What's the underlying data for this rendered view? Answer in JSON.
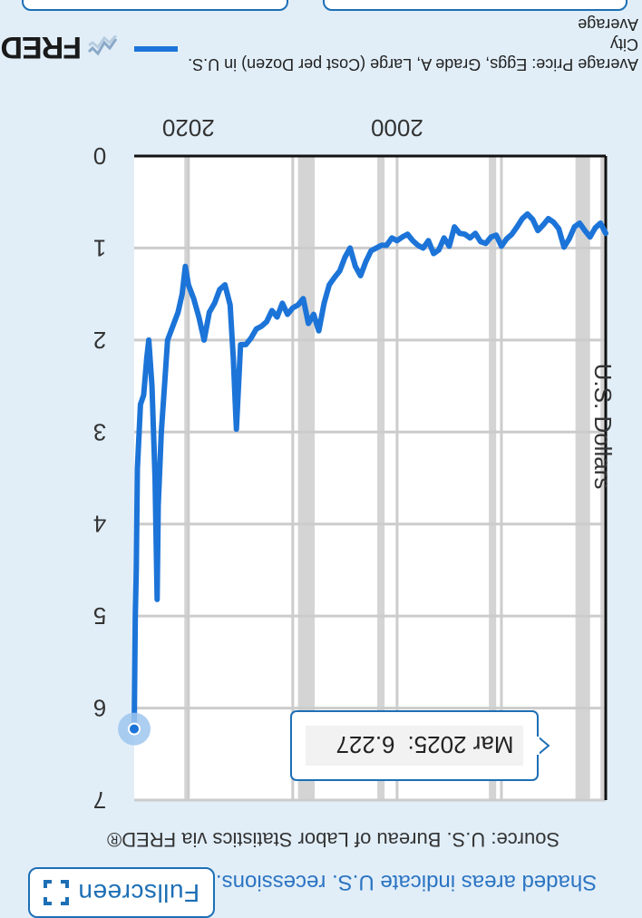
{
  "header": {
    "fullscreen_label": "Fullscreen",
    "recession_note": "Shaded areas indicate U.S. recessions.",
    "source_note": "Source: U.S. Bureau of Labor Statistics via FRED®"
  },
  "legend": {
    "series_label_line1": "Average Price: Eggs, Grade A, Large (Cost per Dozen) in U.S. City",
    "series_label_line2": "Average",
    "logo_text": "FRED"
  },
  "colors": {
    "series": "#1c74d8",
    "recession": "#d4d4d4",
    "grid": "#cccccc",
    "accent": "#1d6fb5",
    "background": "#e1eef8"
  },
  "icons": [
    "fullscreen-icon",
    "fred-logo-icon"
  ],
  "tooltip": {
    "date": "Mar 2025:",
    "value": "6.227"
  },
  "chart_data": {
    "type": "line",
    "title": "",
    "xlabel": "",
    "ylabel": "U.S. Dollars",
    "xlim": [
      1980,
      2025.2
    ],
    "ylim": [
      0,
      7
    ],
    "x_ticks": [
      2000,
      2020
    ],
    "y_ticks": [
      0,
      1,
      2,
      3,
      4,
      5,
      6,
      7
    ],
    "grid": true,
    "legend_position": "bottom",
    "recessions": [
      [
        1980.0,
        1980.5
      ],
      [
        1981.5,
        1982.9
      ],
      [
        1990.5,
        1991.2
      ],
      [
        2001.2,
        2001.9
      ],
      [
        2007.9,
        2009.5
      ],
      [
        2020.1,
        2020.4
      ]
    ],
    "series": [
      {
        "name": "Average Price: Eggs, Grade A, Large (Cost per Dozen) in U.S. City Average",
        "x": [
          1980.0,
          1980.5,
          1981.0,
          1981.5,
          1982.0,
          1982.5,
          1983.0,
          1983.5,
          1984.0,
          1984.5,
          1985.0,
          1985.5,
          1986.0,
          1986.5,
          1987.0,
          1987.5,
          1988.0,
          1988.5,
          1989.0,
          1989.5,
          1990.0,
          1990.5,
          1991.0,
          1991.5,
          1992.0,
          1992.5,
          1993.0,
          1993.5,
          1994.0,
          1994.5,
          1995.0,
          1995.5,
          1996.0,
          1996.5,
          1997.0,
          1997.5,
          1998.0,
          1998.5,
          1999.0,
          1999.5,
          2000.0,
          2000.5,
          2001.0,
          2001.5,
          2002.0,
          2002.5,
          2003.0,
          2003.5,
          2004.0,
          2004.5,
          2005.0,
          2005.5,
          2006.0,
          2006.5,
          2007.0,
          2007.5,
          2008.0,
          2008.5,
          2009.0,
          2009.5,
          2010.0,
          2010.5,
          2011.0,
          2011.5,
          2012.0,
          2012.5,
          2013.0,
          2013.5,
          2014.0,
          2014.5,
          2015.0,
          2015.4,
          2015.7,
          2016.0,
          2016.5,
          2017.0,
          2017.5,
          2018.0,
          2018.5,
          2019.0,
          2019.5,
          2020.0,
          2020.3,
          2020.6,
          2021.0,
          2021.5,
          2022.0,
          2022.3,
          2022.6,
          2022.9,
          2023.0,
          2023.2,
          2023.5,
          2023.8,
          2024.0,
          2024.3,
          2024.6,
          2024.9,
          2025.0,
          2025.1,
          2025.2
        ],
        "values": [
          0.84,
          0.73,
          0.78,
          0.88,
          0.81,
          0.73,
          0.77,
          0.9,
          0.99,
          0.79,
          0.72,
          0.68,
          0.75,
          0.81,
          0.69,
          0.63,
          0.68,
          0.77,
          0.85,
          0.9,
          0.98,
          0.86,
          0.88,
          0.95,
          0.93,
          0.84,
          0.89,
          0.85,
          0.84,
          0.77,
          0.98,
          0.89,
          1.02,
          1.06,
          0.92,
          1.0,
          0.97,
          0.92,
          0.85,
          0.88,
          0.92,
          0.89,
          0.97,
          0.97,
          1.0,
          1.03,
          1.15,
          1.3,
          1.2,
          1.0,
          1.1,
          1.25,
          1.32,
          1.4,
          1.6,
          1.9,
          1.72,
          1.82,
          1.55,
          1.62,
          1.65,
          1.72,
          1.6,
          1.75,
          1.68,
          1.8,
          1.85,
          1.88,
          1.98,
          2.05,
          2.05,
          2.97,
          2.2,
          1.62,
          1.4,
          1.45,
          1.6,
          1.7,
          2.0,
          1.75,
          1.55,
          1.4,
          1.2,
          1.5,
          1.7,
          1.85,
          2.0,
          2.5,
          3.0,
          3.8,
          4.82,
          3.5,
          2.5,
          2.0,
          2.2,
          2.6,
          2.7,
          3.4,
          4.5,
          5.0,
          6.227
        ]
      }
    ]
  }
}
